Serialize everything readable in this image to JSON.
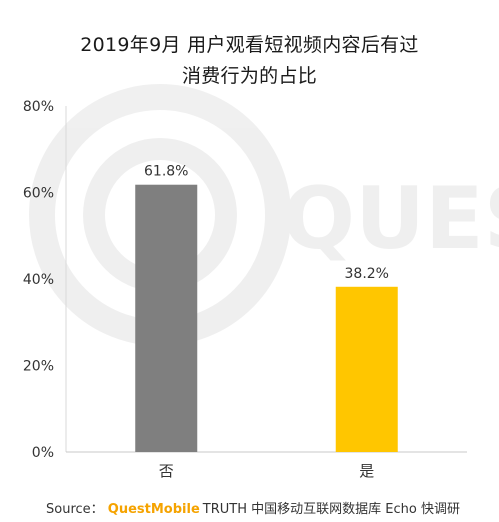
{
  "chart_data": {
    "type": "bar",
    "title_line1": "2019年9月 用户观看短视频内容后有过",
    "title_line2": "消费行为的占比",
    "categories": [
      "否",
      "是"
    ],
    "values": [
      61.8,
      38.2
    ],
    "value_labels": [
      "61.8%",
      "38.2%"
    ],
    "colors": [
      "#7f7f7f",
      "#ffc600"
    ],
    "ylim": [
      0,
      80
    ],
    "yticks": [
      0,
      20,
      40,
      60,
      80
    ],
    "ytick_labels": [
      "0%",
      "20%",
      "40%",
      "60%",
      "80%"
    ],
    "grid": false,
    "xlabel": "",
    "ylabel": ""
  },
  "watermark": "QUEST",
  "source": {
    "prefix": "Source：",
    "brand_quest": "Quest",
    "brand_mobile": "Mobile",
    "rest": "TRUTH 中国移动互联网数据库 Echo 快调研"
  }
}
